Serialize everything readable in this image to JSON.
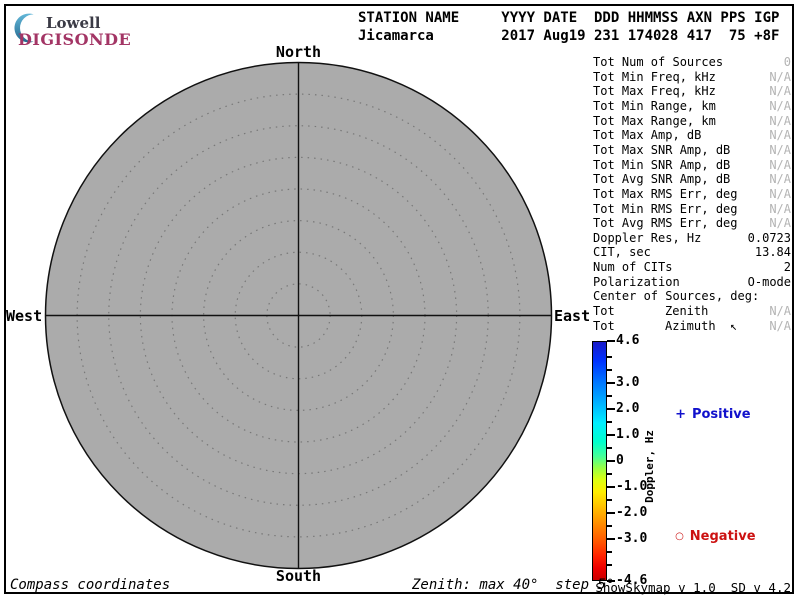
{
  "logo": {
    "lowell": "Lowell",
    "digisonde": "DIGISONDE",
    "lowell_color": "#3b3b46",
    "digisonde_color": "#a33565",
    "crescent_color_top": "#63b7d8",
    "crescent_color_bottom": "#23688f"
  },
  "header": {
    "line1": "STATION NAME     YYYY DATE  DDD HHMMSS AXN PPS IGP",
    "line2": "Jicamarca        2017 Aug19 231 174028 417  75 +8F"
  },
  "stats": {
    "na_color": "#b4b4b4",
    "rows": [
      {
        "label": "Tot Num of Sources",
        "value": "0",
        "dim": true
      },
      {
        "label": "Tot Min Freq, kHz",
        "value": "N/A",
        "dim": true
      },
      {
        "label": "Tot Max Freq, kHz",
        "value": "N/A",
        "dim": true
      },
      {
        "label": "Tot Min Range, km",
        "value": "N/A",
        "dim": true
      },
      {
        "label": "Tot Max Range, km",
        "value": "N/A",
        "dim": true
      },
      {
        "label": "Tot Max Amp, dB",
        "value": "N/A",
        "dim": true
      },
      {
        "label": "Tot Max SNR Amp, dB",
        "value": "N/A",
        "dim": true
      },
      {
        "label": "Tot Min SNR Amp, dB",
        "value": "N/A",
        "dim": true
      },
      {
        "label": "Tot Avg SNR Amp, dB",
        "value": "N/A",
        "dim": true
      },
      {
        "label": "Tot Max RMS Err, deg",
        "value": "N/A",
        "dim": true
      },
      {
        "label": "Tot Min RMS Err, deg",
        "value": "N/A",
        "dim": true
      },
      {
        "label": "Tot Avg RMS Err, deg",
        "value": "N/A",
        "dim": true
      },
      {
        "label": "Doppler Res, Hz",
        "value": "0.0723",
        "dim": false
      },
      {
        "label": "CIT, sec",
        "value": "13.84",
        "dim": false
      },
      {
        "label": "Num of CITs",
        "value": "2",
        "dim": false
      },
      {
        "label": "Polarization",
        "value": "O-mode",
        "dim": false
      },
      {
        "label": "Center of Sources, deg:",
        "value": "",
        "dim": false
      },
      {
        "label": "Tot",
        "mid": "Zenith",
        "value": "N/A",
        "dim": true
      },
      {
        "label": "Tot",
        "mid": "Azimuth  ↖",
        "value": "N/A",
        "dim": true
      }
    ]
  },
  "compass": {
    "label_north": "North",
    "label_south": "South",
    "label_west": "West",
    "label_east": "East",
    "max_zenith_deg": 40,
    "step_deg": 5,
    "fill_color": "#ababab",
    "ring_color": "#787878",
    "axis_color": "#111111"
  },
  "colorbar": {
    "axis_label": "Doppler, Hz",
    "value_max": 4.6,
    "value_min": -4.6,
    "major_ticks": [
      {
        "value": 4.6,
        "label": "4.6"
      },
      {
        "value": 3.0,
        "label": "3.0"
      },
      {
        "value": 2.0,
        "label": "2.0"
      },
      {
        "value": 1.0,
        "label": "1.0"
      },
      {
        "value": 0,
        "label": "0"
      },
      {
        "value": -1.0,
        "label": "-1.0"
      },
      {
        "value": -2.0,
        "label": "-2.0"
      },
      {
        "value": -3.0,
        "label": "-3.0"
      },
      {
        "value": -4.6,
        "label": "-4.6"
      }
    ],
    "minor_ticks": [
      4.0,
      3.5,
      2.5,
      1.5,
      0.5,
      -0.5,
      -1.5,
      -2.5,
      -3.5,
      -4.0
    ],
    "gradient_stops": [
      [
        "0%",
        "#1a1ac8"
      ],
      [
        "8%",
        "#0033ff"
      ],
      [
        "17%",
        "#0077ff"
      ],
      [
        "27%",
        "#00bbff"
      ],
      [
        "34%",
        "#00eeff"
      ],
      [
        "42%",
        "#00ffcc"
      ],
      [
        "48%",
        "#44ff99"
      ],
      [
        "53%",
        "#99ff44"
      ],
      [
        "58%",
        "#ddff11"
      ],
      [
        "63%",
        "#ffee00"
      ],
      [
        "70%",
        "#ffbb00"
      ],
      [
        "77%",
        "#ff8800"
      ],
      [
        "84%",
        "#ff5500"
      ],
      [
        "90%",
        "#ff2200"
      ],
      [
        "95%",
        "#ee0000"
      ],
      [
        "100%",
        "#cc0000"
      ]
    ],
    "positive": {
      "marker": "+",
      "label": "Positive",
      "color": "#1111cc"
    },
    "negative": {
      "marker": "○",
      "label": "Negative",
      "color": "#cc1111"
    }
  },
  "footer": {
    "left": "Compass coordinates",
    "center": "Zenith: max 40°  step 5°",
    "right": "ShowSkymap v 1.0  SD v 4.2"
  }
}
